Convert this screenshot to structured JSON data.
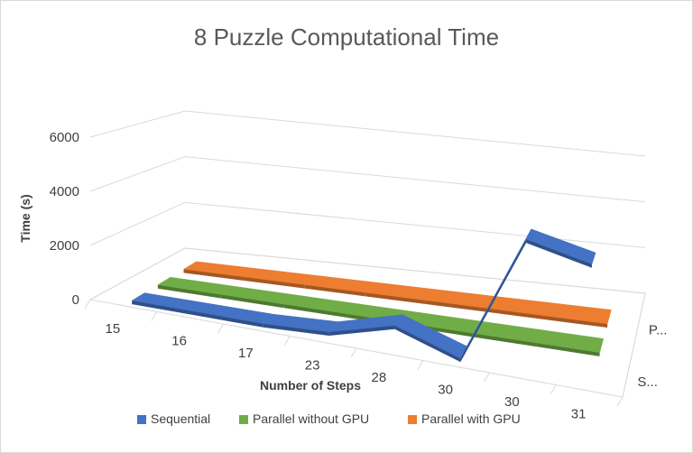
{
  "chart_data": {
    "type": "line",
    "subtype": "3d-line",
    "title": "8 Puzzle Computational Time",
    "xlabel": "Number of Steps",
    "ylabel": "Time (s)",
    "categories": [
      "15",
      "16",
      "17",
      "23",
      "28",
      "30",
      "30",
      "31"
    ],
    "y_ticks": [
      "0",
      "2000",
      "4000",
      "6000"
    ],
    "ylim": [
      0,
      6000
    ],
    "depth_labels": [
      "S...",
      "P..."
    ],
    "series": [
      {
        "name": "Sequential",
        "color": "#4472C4",
        "values": [
          0,
          0,
          0,
          120,
          800,
          0,
          4900,
          4400
        ]
      },
      {
        "name": "Parallel without GPU",
        "color": "#70AD47",
        "values": [
          0,
          0,
          0,
          0,
          0,
          0,
          0,
          0
        ]
      },
      {
        "name": "Parallel with GPU",
        "color": "#ED7D31",
        "values": [
          0,
          0,
          0,
          0,
          0,
          0,
          0,
          0
        ]
      }
    ],
    "grid": true,
    "legend_position": "bottom"
  }
}
